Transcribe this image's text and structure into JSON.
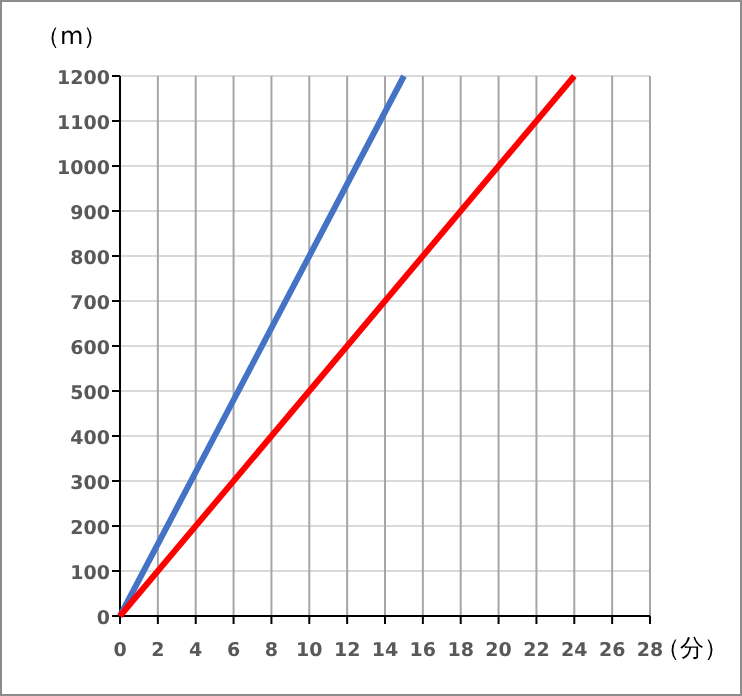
{
  "chart_data": {
    "type": "line",
    "xlabel": "（分）",
    "ylabel": "（m）",
    "series": [
      {
        "color": "#4472c4",
        "x": [
          0,
          15
        ],
        "values": [
          0,
          1200
        ]
      },
      {
        "color": "#ff0000",
        "x": [
          0,
          24
        ],
        "values": [
          0,
          1200
        ]
      }
    ],
    "xlim": [
      0,
      28
    ],
    "ylim": [
      0,
      1200
    ],
    "xticks": [
      0,
      2,
      4,
      6,
      8,
      10,
      12,
      14,
      16,
      18,
      20,
      22,
      24,
      26,
      28
    ],
    "yticks": [
      0,
      100,
      200,
      300,
      400,
      500,
      600,
      700,
      800,
      900,
      1000,
      1100,
      1200
    ],
    "grid": true,
    "marker": "none",
    "line_style": "solid"
  }
}
